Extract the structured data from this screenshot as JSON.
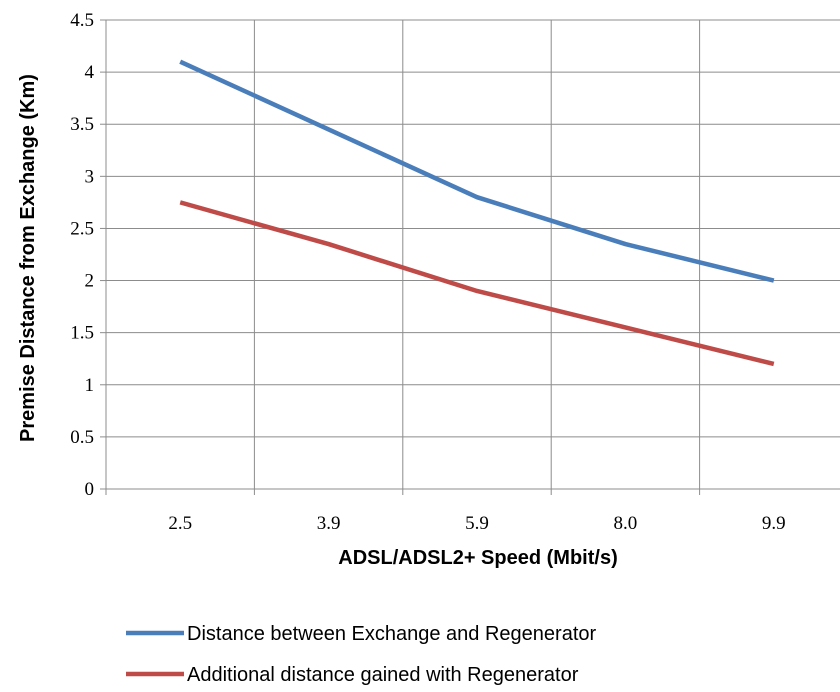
{
  "chart_data": {
    "type": "line",
    "categories": [
      "2.5",
      "3.9",
      "5.9",
      "8.0",
      "9.9"
    ],
    "series": [
      {
        "name": "Distance between Exchange and Regenerator",
        "values": [
          4.1,
          3.45,
          2.8,
          2.35,
          2.0
        ],
        "color": "#4a7ebb"
      },
      {
        "name": "Additional distance gained with Regenerator",
        "values": [
          2.75,
          2.35,
          1.9,
          1.55,
          1.2
        ],
        "color": "#be4b48"
      }
    ],
    "xlabel": "ADSL/ADSL2+ Speed (Mbit/s)",
    "ylabel": "Premise Distance from Exchange (Km)",
    "ylim": [
      0,
      4.5
    ],
    "yticks": [
      "0",
      "0.5",
      "1",
      "1.5",
      "2",
      "2.5",
      "3",
      "3.5",
      "4",
      "4.5"
    ],
    "grid": true,
    "legend_position": "bottom"
  }
}
